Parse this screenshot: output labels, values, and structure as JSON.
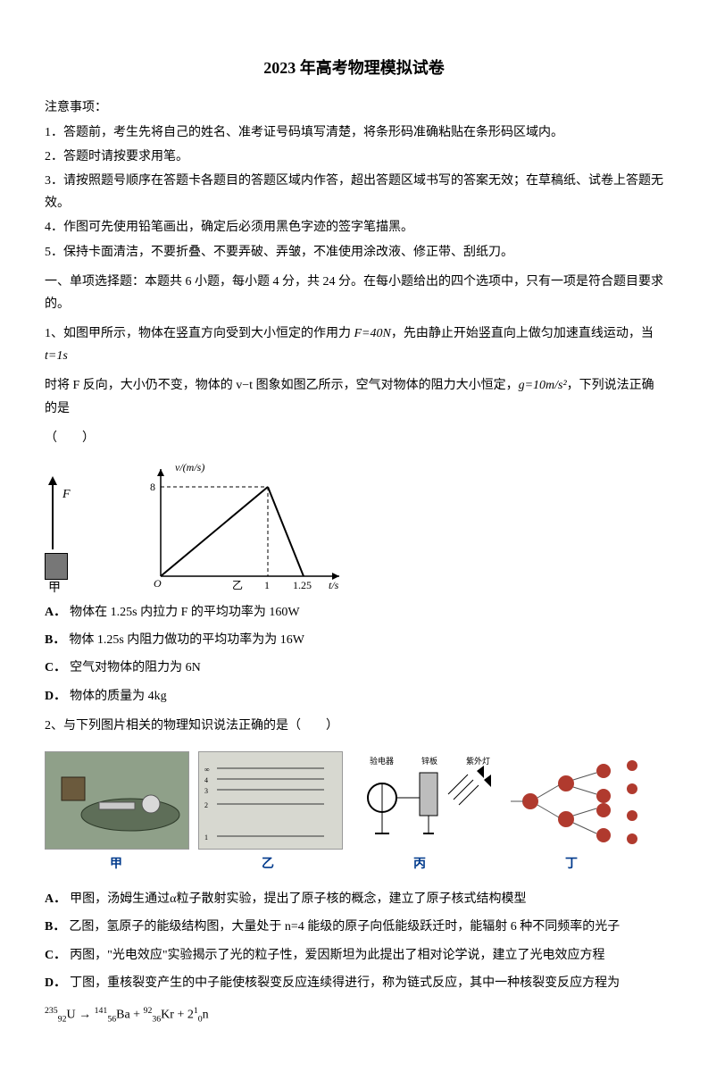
{
  "title": "2023 年高考物理模拟试卷",
  "notice_header": "注意事项：",
  "notices": [
    "1．答题前，考生先将自己的姓名、准考证号码填写清楚，将条形码准确粘贴在条形码区域内。",
    "2．答题时请按要求用笔。",
    "3．请按照题号顺序在答题卡各题目的答题区域内作答，超出答题区域书写的答案无效；在草稿纸、试卷上答题无效。",
    "4．作图可先使用铅笔画出，确定后必须用黑色字迹的签字笔描黑。",
    "5．保持卡面清洁，不要折叠、不要弄破、弄皱，不准使用涂改液、修正带、刮纸刀。"
  ],
  "section1_intro": "一、单项选择题：本题共 6 小题，每小题 4 分，共 24 分。在每小题给出的四个选项中，只有一项是符合题目要求的。",
  "q1": {
    "stem_part1": "1、如图甲所示，物体在竖直方向受到大小恒定的作用力 ",
    "F_expr": "F=40N",
    "stem_part2": "，先由静止开始竖直向上做匀加速直线运动，当 ",
    "t_expr": "t=1s",
    "stem_part3": "时将 F 反向，大小仍不变，物体的 v−t 图象如图乙所示，空气对物体的阻力大小恒定，",
    "g_expr": "g=10m/s²",
    "stem_part4": "，下列说法正确的是",
    "paren": "（　　）",
    "fig_jia": {
      "F_label": "F",
      "caption": "甲"
    },
    "fig_yi": {
      "y_label": "v/(m/s)",
      "x_label": "t/s",
      "y_peak": "8",
      "x_peak": "1",
      "x_zero": "1.25",
      "caption": "乙",
      "peak_xy": [
        1,
        8
      ],
      "zero_x": 1.25,
      "axis_color": "#000000"
    },
    "choices": {
      "A": "物体在 1.25s 内拉力 F 的平均功率为 160W",
      "B": "物体 1.25s 内阻力做功的平均功率为为 16W",
      "C": "空气对物体的阻力为 6N",
      "D": "物体的质量为 4kg"
    }
  },
  "q2": {
    "stem": "2、与下列图片相关的物理知识说法正确的是（　　）",
    "captions": [
      "甲",
      "乙",
      "丙",
      "丁"
    ],
    "panel_labels": {
      "c_left": "验电器",
      "c_right": "锌板",
      "c_uv": "紫外灯"
    },
    "choices": {
      "A": "甲图，汤姆生通过α粒子散射实验，提出了原子核的概念，建立了原子核式结构模型",
      "B": "乙图，氢原子的能级结构图，大量处于 n=4 能级的原子向低能级跃迁时，能辐射 6 种不同频率的光子",
      "C": "丙图，\"光电效应\"实验揭示了光的粒子性，爱因斯坦为此提出了相对论学说，建立了光电效应方程",
      "D": "丁图，重核裂变产生的中子能使核裂变反应连续得进行，称为链式反应，其中一种核裂变反应方程为"
    },
    "equation_html": "<sup>235</sup><sub>92</sub>U → <sup>141</sup><sub>56</sub>Ba + <sup>92</sup><sub>36</sub>Kr + 2<sup>1</sup><sub>0</sub>n"
  },
  "choice_tags": {
    "A": "A．",
    "B": "B．",
    "C": "C．",
    "D": "D．"
  }
}
